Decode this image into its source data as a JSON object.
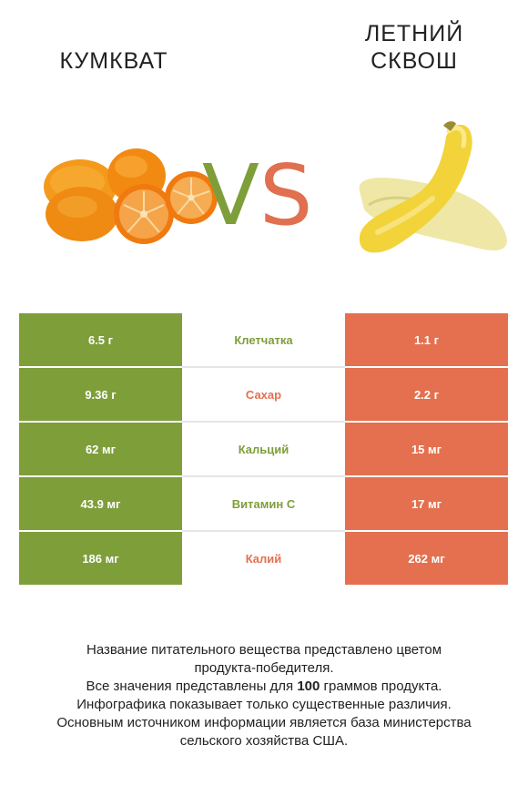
{
  "left_product": {
    "name": "КУМКВАТ"
  },
  "right_product": {
    "name_line1": "ЛЕТНИЙ",
    "name_line2": "СКВОШ"
  },
  "vs": {
    "v": "V",
    "s": "S"
  },
  "colors": {
    "winner_left": "#7e9e3a",
    "winner_right": "#e4704f",
    "vs_v": "#7e9e3a",
    "vs_s": "#e0704f"
  },
  "rows": [
    {
      "nutrient": "Клетчатка",
      "left": "6.5 г",
      "right": "1.1 г",
      "winner": "left"
    },
    {
      "nutrient": "Сахар",
      "left": "9.36 г",
      "right": "2.2 г",
      "winner": "right"
    },
    {
      "nutrient": "Кальций",
      "left": "62 мг",
      "right": "15 мг",
      "winner": "left"
    },
    {
      "nutrient": "Витамин C",
      "left": "43.9 мг",
      "right": "17 мг",
      "winner": "left"
    },
    {
      "nutrient": "Калий",
      "left": "186 мг",
      "right": "262 мг",
      "winner": "right"
    }
  ],
  "footer": {
    "line1": "Название питательного вещества представлено цветом",
    "line2": "продукта-победителя.",
    "line3_pre": "Все значения представлены для ",
    "line3_bold": "100",
    "line3_post": " граммов продукта.",
    "line4": "Инфографика показывает только существенные различия.",
    "line5": "Основным источником информации является база министерства",
    "line6": "сельского хозяйства США."
  }
}
